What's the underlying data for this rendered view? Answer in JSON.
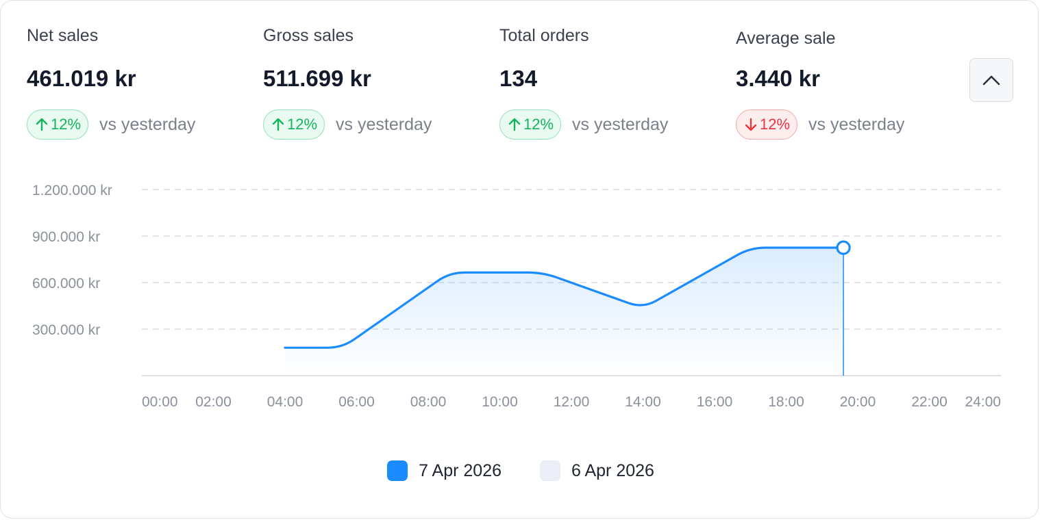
{
  "kpis": [
    {
      "label": "Net sales",
      "value": "461.019 kr",
      "change": "12%",
      "direction": "up",
      "compare": "vs yesterday"
    },
    {
      "label": "Gross sales",
      "value": "511.699 kr",
      "change": "12%",
      "direction": "up",
      "compare": "vs yesterday"
    },
    {
      "label": "Total orders",
      "value": "134",
      "change": "12%",
      "direction": "up",
      "compare": "vs yesterday"
    },
    {
      "label": "Average sale",
      "value": "3.440 kr",
      "change": "12%",
      "direction": "down",
      "compare": "vs yesterday"
    }
  ],
  "collapse_button": {
    "icon": "chevron-up-icon"
  },
  "colors": {
    "series_primary": "#1a8cff",
    "series_secondary": "#eceef7",
    "up": "#15b35e",
    "down": "#ea3340"
  },
  "chart_data": {
    "type": "area",
    "x_tick_labels": [
      "00:00",
      "02:00",
      "04:00",
      "06:00",
      "08:00",
      "10:00",
      "12:00",
      "14:00",
      "16:00",
      "18:00",
      "20:00",
      "22:00",
      "24:00"
    ],
    "y_tick_labels": [
      "300.000 kr",
      "600.000 kr",
      "900.000 kr",
      "1.200.000 kr"
    ],
    "y_ticks": [
      300000,
      600000,
      900000,
      1200000
    ],
    "ylim": [
      0,
      1200000
    ],
    "xlim": [
      0,
      24
    ],
    "grid": true,
    "legend_position": "bottom",
    "series": [
      {
        "name": "7 Apr 2026",
        "x": [
          4,
          5.6,
          8.6,
          11.2,
          14,
          17,
          19.6
        ],
        "y": [
          180000,
          180000,
          665000,
          665000,
          435000,
          825000,
          825000
        ]
      },
      {
        "name": "6 Apr 2026",
        "x": [],
        "y": []
      }
    ],
    "highlight_point": {
      "x": 19.6,
      "y": 825000
    }
  }
}
